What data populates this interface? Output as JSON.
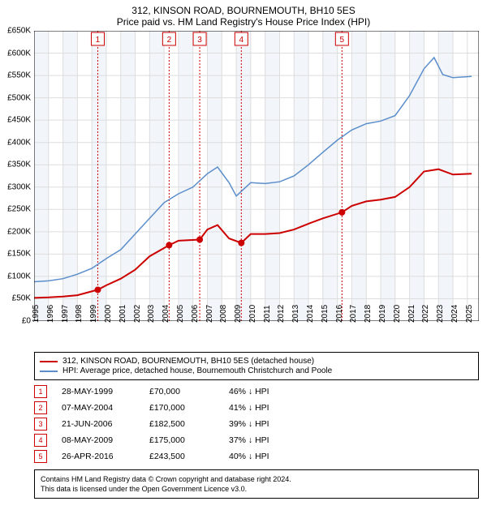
{
  "chart": {
    "title_line1": "312, KINSON ROAD, BOURNEMOUTH, BH10 5ES",
    "title_line2": "Price paid vs. HM Land Registry's House Price Index (HPI)",
    "y_axis": {
      "min": 0,
      "max": 650000,
      "tick_step": 50000,
      "tick_labels": [
        "£0",
        "£50K",
        "£100K",
        "£150K",
        "£200K",
        "£250K",
        "£300K",
        "£350K",
        "£400K",
        "£450K",
        "£500K",
        "£550K",
        "£600K",
        "£650K"
      ],
      "label_fontsize": 10
    },
    "x_axis": {
      "min": 1995.0,
      "max": 2025.8,
      "years": [
        1995,
        1996,
        1997,
        1998,
        1999,
        2000,
        2001,
        2002,
        2003,
        2004,
        2005,
        2006,
        2007,
        2008,
        2009,
        2010,
        2011,
        2012,
        2013,
        2014,
        2015,
        2016,
        2017,
        2018,
        2019,
        2020,
        2021,
        2022,
        2023,
        2024,
        2025
      ],
      "label_fontsize": 10
    },
    "grid_color": "#dddddd",
    "background_color": "#ffffff",
    "alt_band_color": "#f2f5fa",
    "series": {
      "property": {
        "label": "312, KINSON ROAD, BOURNEMOUTH, BH10 5ES (detached house)",
        "color": "#cc0000",
        "line_width": 2,
        "points": [
          [
            1995.0,
            52000
          ],
          [
            1996.0,
            53000
          ],
          [
            1997.0,
            55000
          ],
          [
            1998.0,
            58000
          ],
          [
            1999.4,
            70000
          ],
          [
            2000.0,
            80000
          ],
          [
            2001.0,
            95000
          ],
          [
            2002.0,
            115000
          ],
          [
            2003.0,
            145000
          ],
          [
            2004.35,
            170000
          ],
          [
            2005.0,
            180000
          ],
          [
            2006.47,
            182500
          ],
          [
            2007.0,
            205000
          ],
          [
            2007.7,
            215000
          ],
          [
            2008.5,
            185000
          ],
          [
            2009.35,
            175000
          ],
          [
            2010.0,
            195000
          ],
          [
            2011.0,
            195000
          ],
          [
            2012.0,
            197000
          ],
          [
            2013.0,
            205000
          ],
          [
            2014.0,
            218000
          ],
          [
            2015.0,
            230000
          ],
          [
            2016.32,
            243500
          ],
          [
            2017.0,
            258000
          ],
          [
            2018.0,
            268000
          ],
          [
            2019.0,
            272000
          ],
          [
            2020.0,
            278000
          ],
          [
            2021.0,
            300000
          ],
          [
            2022.0,
            335000
          ],
          [
            2023.0,
            340000
          ],
          [
            2024.0,
            328000
          ],
          [
            2025.3,
            330000
          ]
        ]
      },
      "hpi": {
        "label": "HPI: Average price, detached house, Bournemouth Christchurch and Poole",
        "color": "#5b8ecb",
        "line_width": 1.5,
        "points": [
          [
            1995.0,
            88000
          ],
          [
            1996.0,
            90000
          ],
          [
            1997.0,
            95000
          ],
          [
            1998.0,
            105000
          ],
          [
            1999.0,
            118000
          ],
          [
            2000.0,
            140000
          ],
          [
            2001.0,
            160000
          ],
          [
            2002.0,
            195000
          ],
          [
            2003.0,
            230000
          ],
          [
            2004.0,
            265000
          ],
          [
            2005.0,
            285000
          ],
          [
            2006.0,
            300000
          ],
          [
            2007.0,
            330000
          ],
          [
            2007.7,
            345000
          ],
          [
            2008.5,
            310000
          ],
          [
            2009.0,
            280000
          ],
          [
            2010.0,
            310000
          ],
          [
            2011.0,
            308000
          ],
          [
            2012.0,
            312000
          ],
          [
            2013.0,
            325000
          ],
          [
            2014.0,
            350000
          ],
          [
            2015.0,
            378000
          ],
          [
            2016.0,
            405000
          ],
          [
            2017.0,
            428000
          ],
          [
            2018.0,
            442000
          ],
          [
            2019.0,
            448000
          ],
          [
            2020.0,
            460000
          ],
          [
            2021.0,
            505000
          ],
          [
            2022.0,
            565000
          ],
          [
            2022.7,
            590000
          ],
          [
            2023.3,
            552000
          ],
          [
            2024.0,
            545000
          ],
          [
            2025.3,
            548000
          ]
        ]
      }
    },
    "event_markers": [
      {
        "n": "1",
        "date": "28-MAY-1999",
        "year": 1999.41,
        "price": 70000,
        "price_label": "£70,000",
        "vs_label": "46% ↓ HPI"
      },
      {
        "n": "2",
        "date": "07-MAY-2004",
        "year": 2004.35,
        "price": 170000,
        "price_label": "£170,000",
        "vs_label": "41% ↓ HPI"
      },
      {
        "n": "3",
        "date": "21-JUN-2006",
        "year": 2006.47,
        "price": 182500,
        "price_label": "£182,500",
        "vs_label": "39% ↓ HPI"
      },
      {
        "n": "4",
        "date": "08-MAY-2009",
        "year": 2009.35,
        "price": 175000,
        "price_label": "£175,000",
        "vs_label": "37% ↓ HPI"
      },
      {
        "n": "5",
        "date": "26-APR-2016",
        "year": 2016.32,
        "price": 243500,
        "price_label": "£243,500",
        "vs_label": "40% ↓ HPI"
      }
    ],
    "marker_line_color": "#cc0000",
    "marker_dot_color": "#cc0000",
    "marker_badge_border": "#cc0000",
    "marker_badge_text": "#cc0000"
  },
  "legend": {
    "items": [
      {
        "color": "#cc0000",
        "label_path": "chart.series.property.label"
      },
      {
        "color": "#5b8ecb",
        "label_path": "chart.series.hpi.label"
      }
    ]
  },
  "footer": {
    "line1": "Contains HM Land Registry data © Crown copyright and database right 2024.",
    "line2": "This data is licensed under the Open Government Licence v3.0."
  }
}
